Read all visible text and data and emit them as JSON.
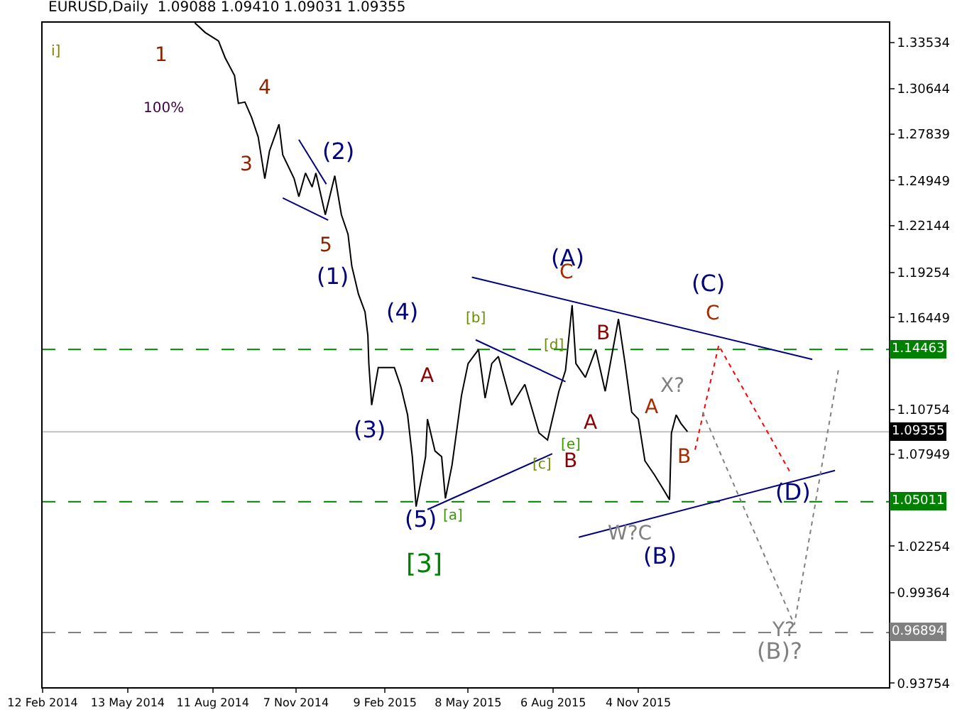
{
  "chart_data": {
    "type": "line",
    "title": "EURUSD,Daily  1.09088 1.09410 1.09031 1.09355",
    "xlim": [
      "2014-02-12",
      "2016-07-26"
    ],
    "ylim": [
      0.935,
      1.3475
    ],
    "xticks": [
      {
        "value": "2014-02-12",
        "label": "12 Feb 2014"
      },
      {
        "value": "2014-05-13",
        "label": "13 May 2014"
      },
      {
        "value": "2014-08-11",
        "label": "11 Aug 2014"
      },
      {
        "value": "2014-11-07",
        "label": "7 Nov 2014"
      },
      {
        "value": "2015-02-09",
        "label": "9 Feb 2015"
      },
      {
        "value": "2015-05-08",
        "label": "8 May 2015"
      },
      {
        "value": "2015-08-06",
        "label": "6 Aug 2015"
      },
      {
        "value": "2015-11-04",
        "label": "4 Nov 2015"
      }
    ],
    "yticks": [
      1.33534,
      1.30644,
      1.27839,
      1.24949,
      1.22144,
      1.19254,
      1.16449,
      1.10754,
      1.07949,
      1.02254,
      0.99364,
      0.93754
    ],
    "grid": false,
    "series": [
      {
        "color": "#000000",
        "line_style": "solid",
        "x": [
          "2014-07-23",
          "2014-08-03",
          "2014-08-17",
          "2014-08-24",
          "2014-09-03",
          "2014-09-07",
          "2014-09-14",
          "2014-09-21",
          "2014-09-28",
          "2014-10-05",
          "2014-10-10",
          "2014-10-20",
          "2014-10-24",
          "2014-11-05",
          "2014-11-10",
          "2014-11-17",
          "2014-11-24",
          "2014-11-28",
          "2014-12-08",
          "2014-12-18",
          "2014-12-25",
          "2015-01-01",
          "2015-01-05",
          "2015-01-12",
          "2015-01-19",
          "2015-01-22",
          "2015-01-23",
          "2015-01-26",
          "2015-02-02",
          "2015-02-19",
          "2015-02-26",
          "2015-03-05",
          "2015-03-10",
          "2015-03-14",
          "2015-03-24",
          "2015-03-26",
          "2015-04-03",
          "2015-04-10",
          "2015-04-14",
          "2015-04-21",
          "2015-05-01",
          "2015-05-08",
          "2015-05-19",
          "2015-05-26",
          "2015-06-02",
          "2015-06-09",
          "2015-06-23",
          "2015-07-07",
          "2015-07-22",
          "2015-07-31",
          "2015-08-12",
          "2015-08-19",
          "2015-08-26",
          "2015-08-30",
          "2015-09-09",
          "2015-09-20",
          "2015-09-30",
          "2015-10-14",
          "2015-10-21",
          "2015-10-28",
          "2015-11-04",
          "2015-11-11",
          "2015-11-21",
          "2015-11-30",
          "2015-12-07",
          "2015-12-09",
          "2015-12-14",
          "2015-12-19",
          "2015-12-26"
        ],
        "values": [
          1.3474,
          1.3414,
          1.3362,
          1.3258,
          1.3146,
          1.2974,
          1.2982,
          1.2887,
          1.2766,
          1.2507,
          1.268,
          1.2844,
          1.2654,
          1.2507,
          1.2395,
          1.2542,
          1.2455,
          1.2542,
          1.2283,
          1.2525,
          1.2283,
          1.2162,
          1.1964,
          1.1791,
          1.1679,
          1.1532,
          1.1359,
          1.1101,
          1.1334,
          1.1334,
          1.1213,
          1.104,
          1.0781,
          1.0471,
          1.0781,
          1.1014,
          1.0816,
          1.0781,
          1.0522,
          1.0729,
          1.1161,
          1.1359,
          1.1446,
          1.1144,
          1.1359,
          1.1403,
          1.1101,
          1.123,
          1.0928,
          1.0885,
          1.1187,
          1.1316,
          1.1722,
          1.1359,
          1.1273,
          1.1446,
          1.1187,
          1.1636,
          1.1359,
          1.1057,
          1.1014,
          1.0755,
          1.0669,
          1.0583,
          1.0514,
          1.0928,
          1.104,
          1.0988,
          1.0936
        ]
      },
      {
        "color": "#000080",
        "line_style": "solid",
        "x": [
          "2014-11-10",
          "2014-12-09"
        ],
        "values": [
          1.2749,
          1.2473
        ]
      },
      {
        "color": "#000080",
        "line_style": "solid",
        "x": [
          "2014-10-24",
          "2014-12-11"
        ],
        "values": [
          1.2387,
          1.2249
        ]
      },
      {
        "color": "#000080",
        "line_style": "solid",
        "x": [
          "2015-03-26",
          "2015-08-05"
        ],
        "values": [
          1.0453,
          1.0799
        ]
      },
      {
        "color": "#000080",
        "line_style": "solid",
        "x": [
          "2015-05-16",
          "2015-08-19"
        ],
        "values": [
          1.1506,
          1.1247
        ]
      },
      {
        "color": "#000080",
        "line_style": "solid",
        "x": [
          "2015-05-12",
          "2016-05-06"
        ],
        "values": [
          1.1895,
          1.1385
        ]
      },
      {
        "color": "#000080",
        "line_style": "solid",
        "x": [
          "2015-09-02",
          "2016-05-30"
        ],
        "values": [
          1.0281,
          1.0695
        ]
      },
      {
        "color": "#ff0000",
        "line_style": "dotted",
        "x": [
          "2016-01-03",
          "2016-01-28",
          "2016-04-14"
        ],
        "values": [
          1.0824,
          1.1472,
          1.0669
        ]
      },
      {
        "color": "#808080",
        "line_style": "dotted",
        "x": [
          "2016-01-11",
          "2016-04-17",
          "2016-06-03"
        ],
        "values": [
          1.1057,
          0.9737,
          1.1334
        ]
      }
    ],
    "ref_lines": [
      {
        "axis": "y",
        "value": 1.14463,
        "label": "1.14463",
        "color": "#008000",
        "line_style": "dashed"
      },
      {
        "axis": "y",
        "value": 1.05011,
        "label": "1.05011",
        "color": "#008000",
        "line_style": "dashed"
      },
      {
        "axis": "y",
        "value": 0.96894,
        "label": "0.96894",
        "color": "#808080",
        "line_style": "dashed"
      },
      {
        "axis": "y",
        "value": 1.09355,
        "label": "1.09355",
        "color": "#c0c0c0",
        "line_style": "solid"
      }
    ],
    "annotations": [
      "i]",
      "1",
      "4",
      "100%",
      "3",
      "(2)",
      "5",
      "(1)",
      "(4)",
      "(3)",
      "(5)",
      "[3]",
      "A",
      "[a]",
      "[b]",
      "[c]",
      "[d]",
      "[e]",
      "B",
      "A",
      "(A)",
      "C",
      "B",
      "A",
      "X?",
      "B",
      "W?C",
      "(B)",
      "(C)",
      "C",
      "(D)",
      "Y?",
      "(B)?"
    ]
  }
}
